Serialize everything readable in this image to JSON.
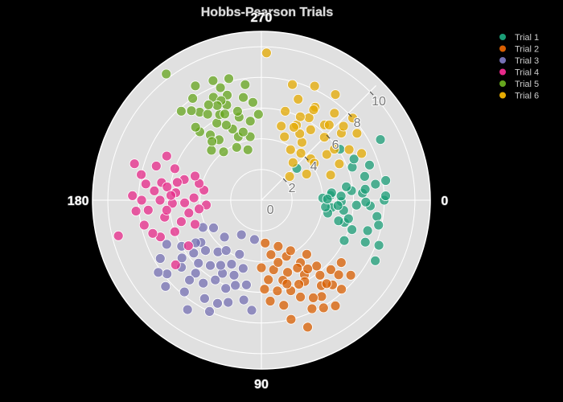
{
  "chart_data": {
    "type": "scatter",
    "subtype": "polar",
    "title": "Hobbs-Pearson Trials",
    "angular_axis": {
      "direction": "clockwise",
      "units": "degrees",
      "tick_labels": [
        "0",
        "90",
        "180",
        "270"
      ]
    },
    "radial_axis": {
      "range": [
        0,
        11
      ],
      "tick_labels": [
        "0",
        "2",
        "4",
        "6",
        "8",
        "10"
      ],
      "label_angle_deg": -45
    },
    "grid": true,
    "legend_position": "top-right",
    "colors": {
      "page_background": "#000000",
      "plot_background": "#e0e0e0",
      "grid": "#ffffff"
    },
    "series": [
      {
        "name": "Trial 1",
        "color": "#1b9e77",
        "points": [
          [
            8.0,
            0
          ],
          [
            7.1,
            3
          ],
          [
            5.9,
            -6
          ],
          [
            6.6,
            -4
          ],
          [
            4.6,
            6
          ],
          [
            7.6,
            8
          ],
          [
            8.2,
            -9
          ],
          [
            5.2,
            1
          ],
          [
            6.9,
            -13
          ],
          [
            5.6,
            15
          ],
          [
            7.4,
            -18
          ],
          [
            6.2,
            18
          ],
          [
            4.0,
            -2
          ],
          [
            7.8,
            12
          ],
          [
            6.3,
            -20
          ],
          [
            5.8,
            12
          ],
          [
            6.8,
            1
          ],
          [
            4.4,
            11
          ],
          [
            8.7,
            -27
          ],
          [
            8.2,
            21
          ],
          [
            7.2,
            16
          ],
          [
            5.2,
            -3
          ],
          [
            7.5,
            -8
          ],
          [
            4.2,
            6
          ],
          [
            6.8,
            -6
          ],
          [
            6.2,
            3
          ],
          [
            5.6,
            -9
          ],
          [
            8.4,
            28
          ],
          [
            6.6,
            -24
          ],
          [
            5.2,
            15
          ],
          [
            7.3,
            22
          ],
          [
            4.5,
            -4
          ],
          [
            4.6,
            -6
          ],
          [
            5.4,
            7
          ],
          [
            8.1,
            -2
          ],
          [
            6.0,
            26
          ],
          [
            6.1,
            -33
          ],
          [
            3.1,
            -42
          ],
          [
            4.3,
            -1
          ],
          [
            5.0,
            4
          ]
        ]
      },
      {
        "name": "Trial 2",
        "color": "#d95f02",
        "points": [
          [
            7.8,
            65
          ],
          [
            6.8,
            55
          ],
          [
            5.6,
            60
          ],
          [
            4.6,
            50
          ],
          [
            7.0,
            78
          ],
          [
            8.1,
            60
          ],
          [
            5.0,
            70
          ],
          [
            6.0,
            80
          ],
          [
            8.8,
            70
          ],
          [
            4.0,
            66
          ],
          [
            6.4,
            45
          ],
          [
            5.2,
            85
          ],
          [
            7.2,
            50
          ],
          [
            6.0,
            62
          ],
          [
            3.6,
            80
          ],
          [
            5.6,
            50
          ],
          [
            7.6,
            40
          ],
          [
            4.6,
            80
          ],
          [
            6.8,
            68
          ],
          [
            5.4,
            75
          ],
          [
            7.4,
            58
          ],
          [
            6.2,
            72
          ],
          [
            3.2,
            70
          ],
          [
            6.6,
            38
          ],
          [
            4.8,
            58
          ],
          [
            8.4,
            55
          ],
          [
            5.8,
            88
          ],
          [
            4.2,
            75
          ],
          [
            7.0,
            44
          ],
          [
            6.2,
            52
          ],
          [
            5.0,
            62
          ],
          [
            7.8,
            48
          ],
          [
            3.8,
            60
          ],
          [
            6.6,
            85
          ],
          [
            5.4,
            56
          ],
          [
            4.4,
            90
          ],
          [
            8.0,
            76
          ],
          [
            6.0,
            66
          ],
          [
            7.2,
            62
          ],
          [
            2.8,
            85
          ],
          [
            6.9,
            52
          ],
          [
            5.7,
            73
          ]
        ]
      },
      {
        "name": "Trial 3",
        "color": "#7570b3",
        "points": [
          [
            6.6,
            125
          ],
          [
            7.8,
            130
          ],
          [
            5.4,
            118
          ],
          [
            4.4,
            130
          ],
          [
            6.8,
            140
          ],
          [
            8.0,
            115
          ],
          [
            5.6,
            100
          ],
          [
            7.0,
            108
          ],
          [
            4.8,
            145
          ],
          [
            6.0,
            150
          ],
          [
            8.4,
            138
          ],
          [
            3.8,
            112
          ],
          [
            5.8,
            135
          ],
          [
            7.4,
            120
          ],
          [
            4.2,
            155
          ],
          [
            6.2,
            112
          ],
          [
            7.2,
            95
          ],
          [
            5.0,
            122
          ],
          [
            6.8,
            155
          ],
          [
            8.6,
            124
          ],
          [
            4.6,
            105
          ],
          [
            5.6,
            142
          ],
          [
            7.6,
            150
          ],
          [
            3.4,
            135
          ],
          [
            6.4,
            132
          ],
          [
            5.2,
            110
          ],
          [
            7.8,
            142
          ],
          [
            4.0,
            125
          ],
          [
            6.0,
            120
          ],
          [
            2.6,
            120
          ],
          [
            5.4,
            128
          ],
          [
            7.0,
            132
          ],
          [
            4.6,
            115
          ],
          [
            6.4,
            144
          ],
          [
            2.6,
            100
          ],
          [
            8.2,
            145
          ],
          [
            5.8,
            107
          ],
          [
            3.6,
            150
          ],
          [
            7.3,
            113
          ],
          [
            4.9,
            138
          ],
          [
            6.6,
            100
          ],
          [
            5.1,
            147
          ]
        ]
      },
      {
        "name": "Trial 4",
        "color": "#e7298a",
        "points": [
          [
            7.0,
            185
          ],
          [
            6.6,
            190
          ],
          [
            5.8,
            178
          ],
          [
            4.4,
            182
          ],
          [
            7.4,
            175
          ],
          [
            8.0,
            192
          ],
          [
            5.2,
            195
          ],
          [
            6.4,
            170
          ],
          [
            8.4,
            182
          ],
          [
            4.8,
            170
          ],
          [
            6.0,
            200
          ],
          [
            7.2,
            198
          ],
          [
            3.8,
            190
          ],
          [
            5.6,
            185
          ],
          [
            7.8,
            168
          ],
          [
            4.6,
            160
          ],
          [
            6.8,
            205
          ],
          [
            5.4,
            165
          ],
          [
            8.6,
            196
          ],
          [
            6.0,
            160
          ],
          [
            7.0,
            160
          ],
          [
            5.0,
            178
          ],
          [
            3.6,
            175
          ],
          [
            6.6,
            180
          ],
          [
            7.6,
            188
          ],
          [
            4.2,
            195
          ],
          [
            5.6,
            192
          ],
          [
            6.2,
            174
          ],
          [
            9.6,
            166
          ],
          [
            7.4,
            163
          ],
          [
            8.2,
            175
          ],
          [
            5.6,
            148
          ],
          [
            7.0,
            143
          ],
          [
            4.6,
            200
          ],
          [
            6.2,
            188
          ],
          [
            7.8,
            180
          ],
          [
            5.9,
            183
          ],
          [
            4.1,
            172
          ]
        ]
      },
      {
        "name": "Trial 5",
        "color": "#66a61e",
        "points": [
          [
            6.6,
            250
          ],
          [
            7.4,
            245
          ],
          [
            5.8,
            240
          ],
          [
            4.4,
            250
          ],
          [
            6.0,
            228
          ],
          [
            8.2,
            255
          ],
          [
            5.2,
            262
          ],
          [
            7.0,
            235
          ],
          [
            8.6,
            240
          ],
          [
            4.8,
            235
          ],
          [
            6.8,
            260
          ],
          [
            7.8,
            228
          ],
          [
            3.8,
            245
          ],
          [
            5.6,
            255
          ],
          [
            6.4,
            265
          ],
          [
            4.6,
            225
          ],
          [
            7.2,
            252
          ],
          [
            8.0,
            236
          ],
          [
            5.0,
            248
          ],
          [
            6.2,
            244
          ],
          [
            7.6,
            262
          ],
          [
            4.2,
            260
          ],
          [
            5.4,
            232
          ],
          [
            6.6,
            238
          ],
          [
            7.0,
            248
          ],
          [
            8.4,
            248
          ],
          [
            5.6,
            268
          ],
          [
            4.0,
            232
          ],
          [
            6.0,
            255
          ],
          [
            7.4,
            232
          ],
          [
            3.4,
            255
          ],
          [
            6.8,
            245
          ],
          [
            5.4,
            245
          ],
          [
            7.8,
            250
          ],
          [
            4.6,
            255
          ],
          [
            6.4,
            228
          ],
          [
            10.3,
            233
          ],
          [
            5.0,
            230
          ],
          [
            6.1,
            247
          ],
          [
            7.1,
            241
          ]
        ]
      },
      {
        "name": "Trial 6",
        "color": "#e6ab02",
        "points": [
          [
            7.0,
            290
          ],
          [
            6.2,
            300
          ],
          [
            5.4,
            295
          ],
          [
            4.6,
            305
          ],
          [
            7.4,
            310
          ],
          [
            8.2,
            295
          ],
          [
            5.8,
            315
          ],
          [
            6.8,
            320
          ],
          [
            3.8,
            300
          ],
          [
            4.2,
            320
          ],
          [
            7.8,
            285
          ],
          [
            5.0,
            285
          ],
          [
            6.0,
            285
          ],
          [
            8.0,
            318
          ],
          [
            4.4,
            290
          ],
          [
            5.6,
            305
          ],
          [
            7.0,
            300
          ],
          [
            6.4,
            310
          ],
          [
            3.2,
            310
          ],
          [
            7.6,
            325
          ],
          [
            5.2,
            325
          ],
          [
            6.6,
            330
          ],
          [
            4.8,
            340
          ],
          [
            3.4,
            330
          ],
          [
            2.4,
            320
          ],
          [
            5.6,
            335
          ],
          [
            7.2,
            335
          ],
          [
            6.0,
            295
          ],
          [
            8.4,
            305
          ],
          [
            4.0,
            310
          ],
          [
            6.8,
            300
          ],
          [
            5.0,
            300
          ],
          [
            7.2,
            318
          ],
          [
            4.2,
            325
          ],
          [
            9.6,
            272
          ],
          [
            5.8,
            325
          ],
          [
            6.6,
            312
          ],
          [
            5.2,
            294
          ]
        ]
      }
    ]
  }
}
